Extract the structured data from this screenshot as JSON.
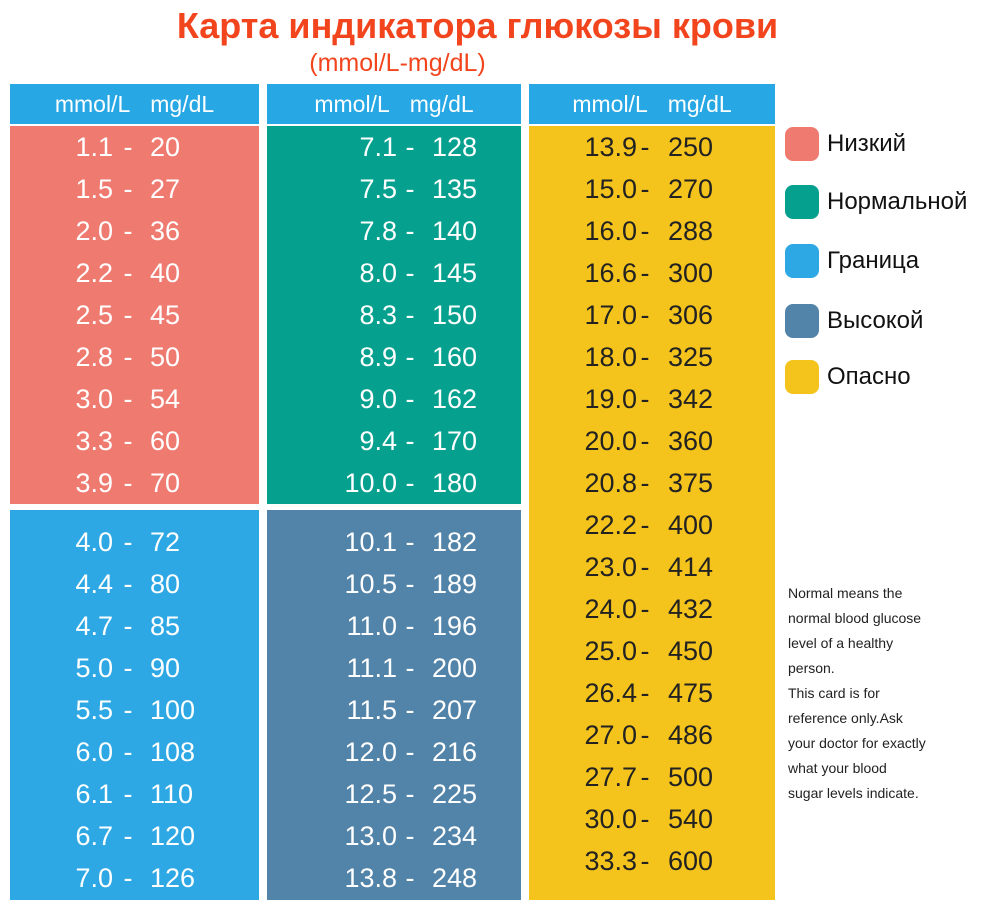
{
  "title": "Карта индикатора глюкозы крови",
  "subtitle": "(mmol/L-mg/dL)",
  "headers": [
    {
      "mmol": "mmol/L",
      "mg": "mg/dL"
    },
    {
      "mmol": "mmol/L",
      "mg": "mg/dL"
    },
    {
      "mmol": "mmol/L",
      "mg": "mg/dL"
    }
  ],
  "colors": {
    "header": "#27a8e5",
    "low": "#ef7b70",
    "normal": "#06a08f",
    "border": "#2ea8e4",
    "high": "#5283a8",
    "danger": "#f5c41c",
    "title": "#f2451e"
  },
  "blocks": {
    "low": [
      {
        "mmol": "1.1",
        "sep": "-",
        "mg": "20"
      },
      {
        "mmol": "1.5",
        "sep": "-",
        "mg": "27"
      },
      {
        "mmol": "2.0",
        "sep": "-",
        "mg": "36"
      },
      {
        "mmol": "2.2",
        "sep": "-",
        "mg": "40"
      },
      {
        "mmol": "2.5",
        "sep": "-",
        "mg": "45"
      },
      {
        "mmol": "2.8",
        "sep": "-",
        "mg": "50"
      },
      {
        "mmol": "3.0",
        "sep": "-",
        "mg": "54"
      },
      {
        "mmol": "3.3",
        "sep": "-",
        "mg": "60"
      },
      {
        "mmol": "3.9",
        "sep": "-",
        "mg": "70"
      }
    ],
    "border": [
      {
        "mmol": "4.0",
        "sep": "-",
        "mg": "72"
      },
      {
        "mmol": "4.4",
        "sep": "-",
        "mg": "80"
      },
      {
        "mmol": "4.7",
        "sep": "-",
        "mg": "85"
      },
      {
        "mmol": "5.0",
        "sep": "-",
        "mg": "90"
      },
      {
        "mmol": "5.5",
        "sep": "-",
        "mg": "100"
      },
      {
        "mmol": "6.0",
        "sep": "-",
        "mg": "108"
      },
      {
        "mmol": "6.1",
        "sep": "-",
        "mg": "110"
      },
      {
        "mmol": "6.7",
        "sep": "-",
        "mg": "120"
      },
      {
        "mmol": "7.0",
        "sep": "-",
        "mg": "126"
      }
    ],
    "normal": [
      {
        "mmol": "7.1",
        "sep": "-",
        "mg": "128"
      },
      {
        "mmol": "7.5",
        "sep": "-",
        "mg": "135"
      },
      {
        "mmol": "7.8",
        "sep": "-",
        "mg": "140"
      },
      {
        "mmol": "8.0",
        "sep": "-",
        "mg": "145"
      },
      {
        "mmol": "8.3",
        "sep": "-",
        "mg": "150"
      },
      {
        "mmol": "8.9",
        "sep": "-",
        "mg": "160"
      },
      {
        "mmol": "9.0",
        "sep": "-",
        "mg": "162"
      },
      {
        "mmol": "9.4",
        "sep": "-",
        "mg": "170"
      },
      {
        "mmol": "10.0",
        "sep": "-",
        "mg": "180"
      }
    ],
    "high": [
      {
        "mmol": "10.1",
        "sep": "-",
        "mg": "182"
      },
      {
        "mmol": "10.5",
        "sep": "-",
        "mg": "189"
      },
      {
        "mmol": "11.0",
        "sep": "-",
        "mg": "196"
      },
      {
        "mmol": "11.1",
        "sep": "-",
        "mg": "200"
      },
      {
        "mmol": "11.5",
        "sep": "-",
        "mg": "207"
      },
      {
        "mmol": "12.0",
        "sep": "-",
        "mg": "216"
      },
      {
        "mmol": "12.5",
        "sep": "-",
        "mg": "225"
      },
      {
        "mmol": "13.0",
        "sep": "-",
        "mg": "234"
      },
      {
        "mmol": "13.8",
        "sep": "-",
        "mg": "248"
      }
    ],
    "danger": [
      {
        "mmol": "13.9",
        "sep": "-",
        "mg": "250"
      },
      {
        "mmol": "15.0",
        "sep": "-",
        "mg": "270"
      },
      {
        "mmol": "16.0",
        "sep": "-",
        "mg": "288"
      },
      {
        "mmol": "16.6",
        "sep": "-",
        "mg": "300"
      },
      {
        "mmol": "17.0",
        "sep": "-",
        "mg": "306"
      },
      {
        "mmol": "18.0",
        "sep": "-",
        "mg": "325"
      },
      {
        "mmol": "19.0",
        "sep": "-",
        "mg": "342"
      },
      {
        "mmol": "20.0",
        "sep": "-",
        "mg": "360"
      },
      {
        "mmol": "20.8",
        "sep": "-",
        "mg": "375"
      },
      {
        "mmol": "22.2",
        "sep": "-",
        "mg": "400"
      },
      {
        "mmol": "23.0",
        "sep": "-",
        "mg": "414"
      },
      {
        "mmol": "24.0",
        "sep": "-",
        "mg": "432"
      },
      {
        "mmol": "25.0",
        "sep": "-",
        "mg": "450"
      },
      {
        "mmol": "26.4",
        "sep": "-",
        "mg": "475"
      },
      {
        "mmol": "27.0",
        "sep": "-",
        "mg": "486"
      },
      {
        "mmol": "27.7",
        "sep": "-",
        "mg": "500"
      },
      {
        "mmol": "30.0",
        "sep": "-",
        "mg": "540"
      },
      {
        "mmol": "33.3",
        "sep": "-",
        "mg": "600"
      }
    ]
  },
  "legend": [
    {
      "label": "Низкий",
      "color": "#ef7b70"
    },
    {
      "label": "Нормальной",
      "color": "#06a08f"
    },
    {
      "label": "Граница",
      "color": "#2ea8e4"
    },
    {
      "label": "Высокой",
      "color": "#5283a8"
    },
    {
      "label": "Опасно",
      "color": "#f5c41c"
    }
  ],
  "note": [
    "Normal means the",
    "normal blood glucose",
    "level of a healthy",
    "person.",
    "This card is for",
    "reference only.Ask",
    "your doctor for exactly",
    "what your blood",
    "sugar levels indicate."
  ]
}
